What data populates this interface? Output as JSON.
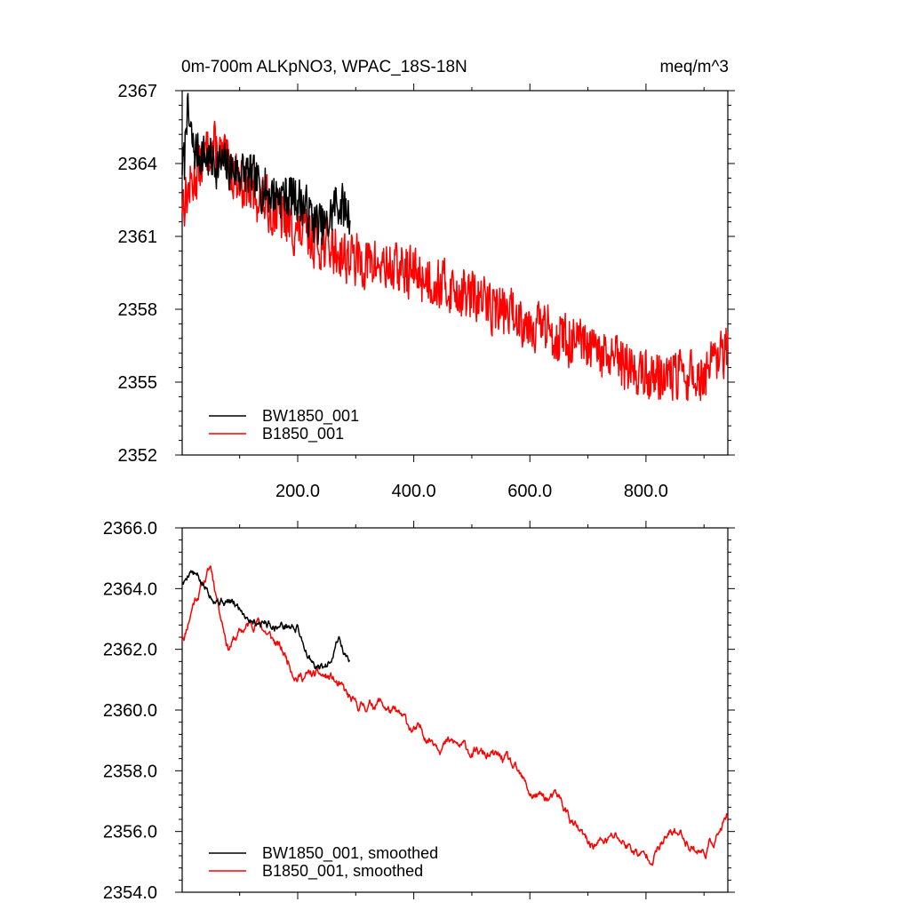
{
  "chart_data": [
    {
      "type": "line",
      "title": "0m-700m ALKpNO3, WPAC_18S-18N",
      "units": "meq/m^3",
      "xlim": [
        1,
        941
      ],
      "ylim": [
        2352,
        2367
      ],
      "y_ticks": [
        2352,
        2355,
        2358,
        2361,
        2364,
        2367
      ],
      "y_tick_labels": [
        "2352",
        "2355",
        "2358",
        "2361",
        "2364",
        "2367"
      ],
      "x_ticks": [
        200,
        400,
        600,
        800
      ],
      "x_tick_labels": [
        "200.0",
        "400.0",
        "600.0",
        "800.0"
      ],
      "legend_position": "bottom-left",
      "series": [
        {
          "name": "BW1850_001",
          "color": "#000000",
          "x_start": 1,
          "x_end": 290,
          "trend_start": 2364.3,
          "trend_end": 2361.5,
          "amplitude": 1.15,
          "seed": 7,
          "knots": [
            [
              5,
              2364.0
            ],
            [
              8,
              2366.3
            ],
            [
              20,
              2364.6
            ],
            [
              60,
              2364.0
            ],
            [
              110,
              2363.6
            ],
            [
              150,
              2362.8
            ],
            [
              200,
              2362.6
            ],
            [
              230,
              2361.6
            ],
            [
              250,
              2361.3
            ],
            [
              265,
              2362.4
            ],
            [
              290,
              2362.0
            ]
          ]
        },
        {
          "name": "B1850_001",
          "color": "#ff0000",
          "x_start": 1,
          "x_end": 941,
          "trend_start": 2362.8,
          "trend_end": 2355.2,
          "amplitude": 1.3,
          "seed": 13,
          "knots": [
            [
              5,
              2362.5
            ],
            [
              50,
              2364.8
            ],
            [
              100,
              2363.3
            ],
            [
              200,
              2361.2
            ],
            [
              300,
              2360.0
            ],
            [
              400,
              2359.5
            ],
            [
              500,
              2358.5
            ],
            [
              600,
              2357.5
            ],
            [
              700,
              2356.3
            ],
            [
              800,
              2355.3
            ],
            [
              900,
              2355.2
            ],
            [
              941,
              2356.3
            ]
          ]
        }
      ]
    },
    {
      "type": "line",
      "xlim": [
        1,
        941
      ],
      "ylim": [
        2354,
        2366
      ],
      "y_ticks": [
        2354,
        2356,
        2358,
        2360,
        2362,
        2364,
        2366
      ],
      "y_tick_labels": [
        "2354.0",
        "2356.0",
        "2358.0",
        "2360.0",
        "2362.0",
        "2364.0",
        "2366.0"
      ],
      "x_ticks": [
        200,
        400,
        600,
        800
      ],
      "x_tick_labels": [],
      "legend_position": "bottom-left",
      "series": [
        {
          "name": "BW1850_001, smoothed",
          "color": "#000000",
          "x_start": 1,
          "x_end": 290,
          "trend_start": 2364.3,
          "trend_end": 2361.5,
          "amplitude": 0.4,
          "seed": 5,
          "knots": [
            [
              5,
              2364.2
            ],
            [
              15,
              2364.7
            ],
            [
              40,
              2364.0
            ],
            [
              80,
              2363.6
            ],
            [
              120,
              2363.1
            ],
            [
              150,
              2362.9
            ],
            [
              200,
              2362.7
            ],
            [
              230,
              2361.3
            ],
            [
              250,
              2361.4
            ],
            [
              270,
              2362.5
            ],
            [
              285,
              2361.7
            ]
          ]
        },
        {
          "name": "B1850_001, smoothed",
          "color": "#ff0000",
          "x_start": 1,
          "x_end": 941,
          "trend_start": 2362.8,
          "trend_end": 2355.3,
          "amplitude": 0.45,
          "seed": 11,
          "knots": [
            [
              5,
              2362.5
            ],
            [
              20,
              2363.6
            ],
            [
              50,
              2364.7
            ],
            [
              80,
              2362.2
            ],
            [
              130,
              2363.0
            ],
            [
              200,
              2361.2
            ],
            [
              260,
              2361.0
            ],
            [
              300,
              2360.0
            ],
            [
              340,
              2360.3
            ],
            [
              400,
              2359.3
            ],
            [
              450,
              2359.0
            ],
            [
              500,
              2358.6
            ],
            [
              560,
              2358.3
            ],
            [
              600,
              2357.2
            ],
            [
              650,
              2357.0
            ],
            [
              700,
              2355.5
            ],
            [
              750,
              2355.8
            ],
            [
              800,
              2355.1
            ],
            [
              850,
              2356.0
            ],
            [
              900,
              2355.3
            ],
            [
              941,
              2356.4
            ]
          ]
        }
      ]
    }
  ]
}
